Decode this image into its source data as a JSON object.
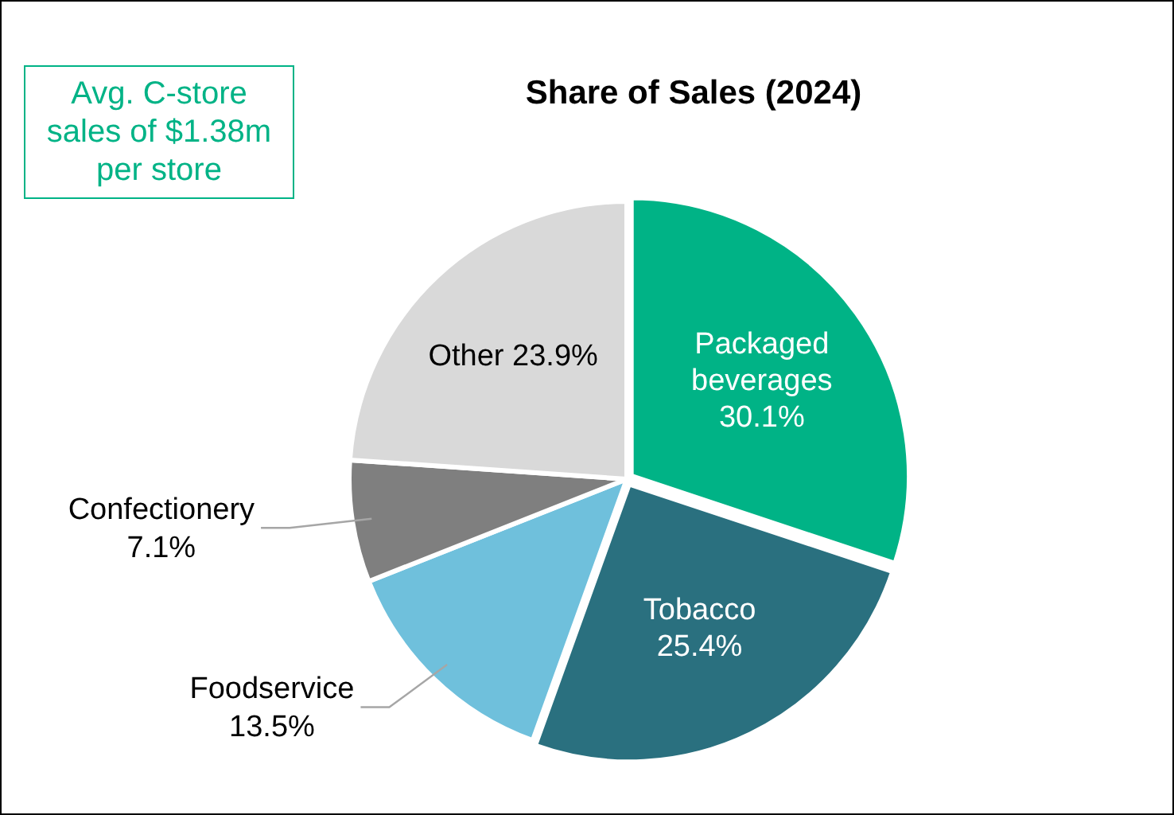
{
  "chart_data": {
    "type": "pie",
    "title": "Share of Sales (2024)",
    "categories": [
      "Packaged beverages",
      "Tobacco",
      "Foodservice",
      "Confectionery",
      "Other"
    ],
    "values": [
      30.1,
      25.4,
      13.5,
      7.1,
      23.9
    ],
    "value_labels": [
      "30.1%",
      "25.4%",
      "13.5%",
      "7.1%",
      "23.9%"
    ],
    "colors": [
      "#00b386",
      "#2a707f",
      "#6fc0dc",
      "#7f7f7f",
      "#d9d9d9"
    ],
    "legend": false,
    "annotations": [
      "Avg. C-store sales of $1.38m per store"
    ]
  }
}
